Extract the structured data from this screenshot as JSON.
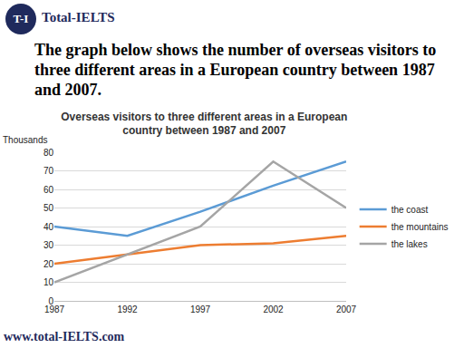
{
  "logo": "T-I",
  "brand": "Total-IELTS",
  "prompt": "The graph below shows the number of overseas visitors to three different areas in a European country between 1987 and 2007.",
  "footer": "www.total-IELTS.com",
  "chart_data": {
    "type": "line",
    "title": "Overseas visitors to three different areas in a European country between 1987 and 2007",
    "y_label": "Thousands",
    "categories": [
      "1987",
      "1992",
      "1997",
      "2002",
      "2007"
    ],
    "series": [
      {
        "name": "the coast",
        "color": "#5b9bd5",
        "values": [
          40,
          35,
          48,
          62,
          75
        ]
      },
      {
        "name": "the mountains",
        "color": "#ed7d31",
        "values": [
          20,
          25,
          30,
          31,
          35
        ]
      },
      {
        "name": "the lakes",
        "color": "#a5a5a5",
        "values": [
          10,
          25,
          40,
          75,
          50
        ]
      }
    ],
    "ylim": [
      0,
      80
    ],
    "yticks": [
      0,
      10,
      20,
      30,
      40,
      50,
      60,
      70,
      80
    ],
    "grid": true,
    "legend": "right"
  }
}
